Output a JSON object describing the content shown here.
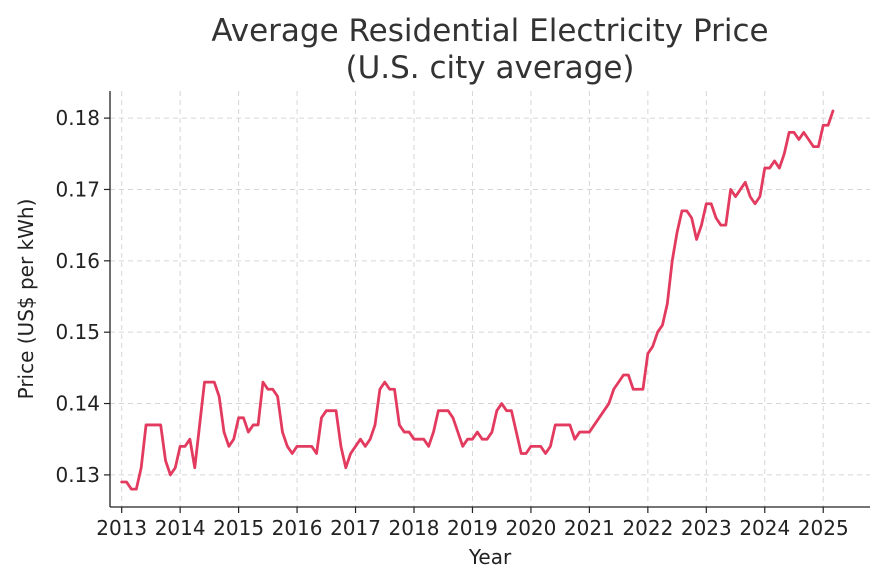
{
  "chart_data": {
    "type": "line",
    "title_line1": "Average Residential Electricity Price",
    "title_line2": "(U.S. city average)",
    "xlabel": "Year",
    "ylabel": "Price (US$ per kWh)",
    "xlim": [
      2012.8,
      2025.8
    ],
    "ylim": [
      0.1255,
      0.1838
    ],
    "x_ticks": [
      2013,
      2014,
      2015,
      2016,
      2017,
      2018,
      2019,
      2020,
      2021,
      2022,
      2023,
      2024,
      2025
    ],
    "x_tick_labels": [
      "2013",
      "2014",
      "2015",
      "2016",
      "2017",
      "2018",
      "2019",
      "2020",
      "2021",
      "2022",
      "2023",
      "2024",
      "2025"
    ],
    "y_ticks": [
      0.13,
      0.14,
      0.15,
      0.16,
      0.17,
      0.18
    ],
    "y_tick_labels": [
      "0.13",
      "0.14",
      "0.15",
      "0.16",
      "0.17",
      "0.18"
    ],
    "grid": true,
    "line_color": "#e23b5f",
    "series": [
      {
        "x_start": 2013,
        "x_step_months": 1,
        "values": [
          0.129,
          0.129,
          0.128,
          0.128,
          0.131,
          0.137,
          0.137,
          0.137,
          0.137,
          0.132,
          0.13,
          0.131,
          0.134,
          0.134,
          0.135,
          0.131,
          0.137,
          0.143,
          0.143,
          0.143,
          0.141,
          0.136,
          0.134,
          0.135,
          0.138,
          0.138,
          0.136,
          0.137,
          0.137,
          0.143,
          0.142,
          0.142,
          0.141,
          0.136,
          0.134,
          0.133,
          0.134,
          0.134,
          0.134,
          0.134,
          0.133,
          0.138,
          0.139,
          0.139,
          0.139,
          0.134,
          0.131,
          0.133,
          0.134,
          0.135,
          0.134,
          0.135,
          0.137,
          0.142,
          0.143,
          0.142,
          0.142,
          0.137,
          0.136,
          0.136,
          0.135,
          0.135,
          0.135,
          0.134,
          0.136,
          0.139,
          0.139,
          0.139,
          0.138,
          0.136,
          0.134,
          0.135,
          0.135,
          0.136,
          0.135,
          0.135,
          0.136,
          0.139,
          0.14,
          0.139,
          0.139,
          0.136,
          0.133,
          0.133,
          0.134,
          0.134,
          0.134,
          0.133,
          0.134,
          0.137,
          0.137,
          0.137,
          0.137,
          0.135,
          0.136,
          0.136,
          0.136,
          0.137,
          0.138,
          0.139,
          0.14,
          0.142,
          0.143,
          0.144,
          0.144,
          0.142,
          0.142,
          0.142,
          0.147,
          0.148,
          0.15,
          0.151,
          0.154,
          0.16,
          0.164,
          0.167,
          0.167,
          0.166,
          0.163,
          0.165,
          0.168,
          0.168,
          0.166,
          0.165,
          0.165,
          0.17,
          0.169,
          0.17,
          0.171,
          0.169,
          0.168,
          0.169,
          0.173,
          0.173,
          0.174,
          0.173,
          0.175,
          0.178,
          0.178,
          0.177,
          0.178,
          0.177,
          0.176,
          0.176,
          0.179,
          0.179,
          0.181
        ]
      }
    ]
  }
}
